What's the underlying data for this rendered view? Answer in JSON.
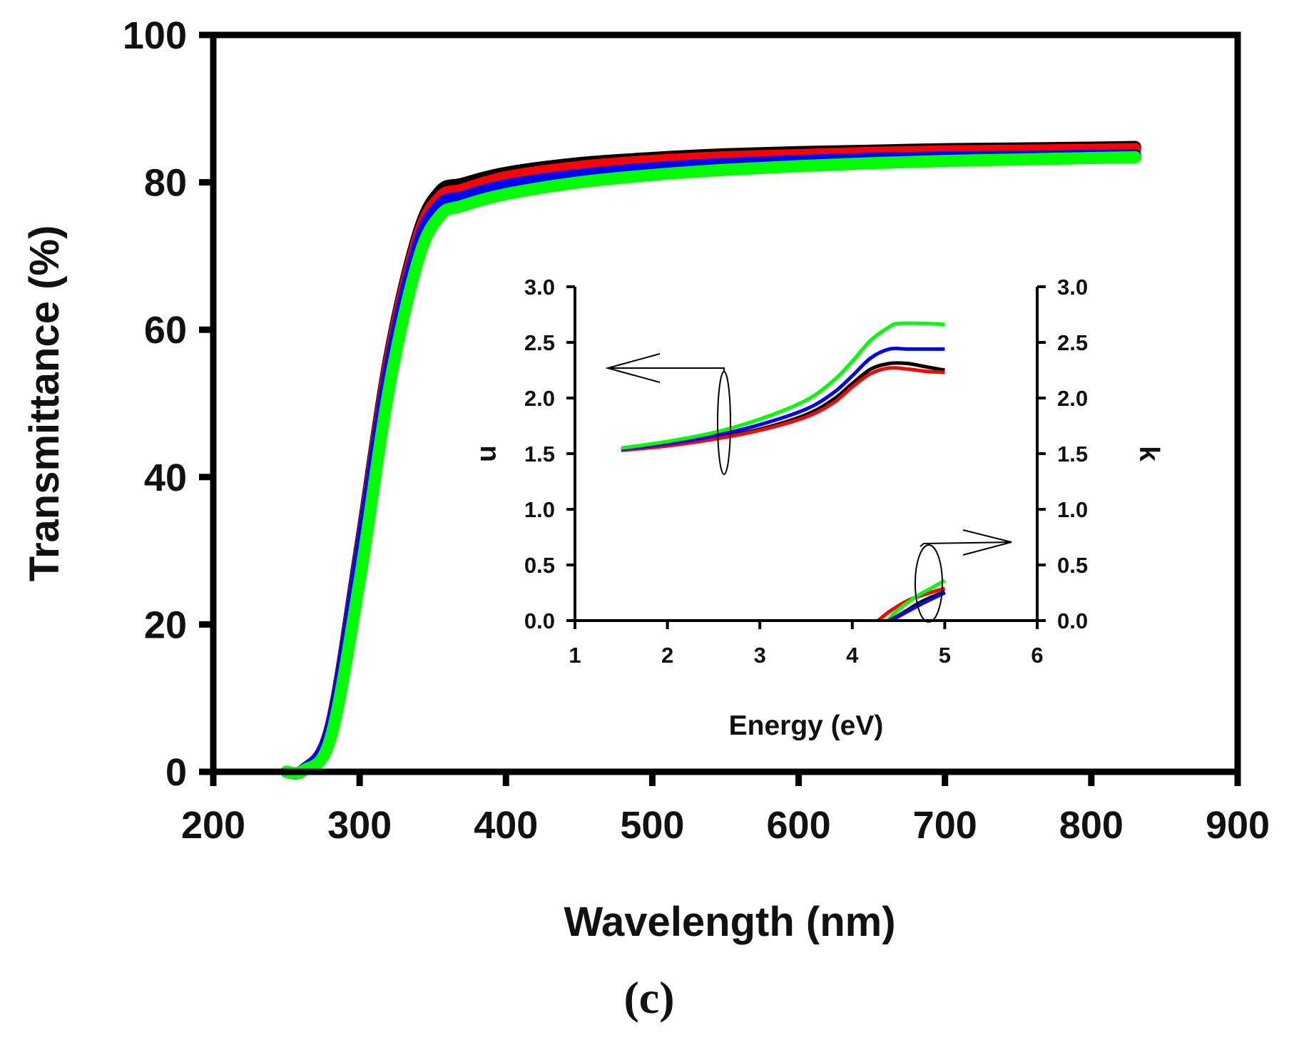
{
  "panel_label": "(c)",
  "colors": {
    "black": "#000000",
    "red": "#ff0000",
    "blue": "#0000ff",
    "green": "#00ff00"
  },
  "chart_data": [
    {
      "type": "line",
      "xlabel": "Wavelength (nm)",
      "ylabel": "Transmittance (%)",
      "xlim": [
        200,
        900
      ],
      "ylim": [
        0,
        100
      ],
      "xticks": [
        "200",
        "300",
        "400",
        "500",
        "600",
        "700",
        "800",
        "900"
      ],
      "yticks": [
        "0",
        "20",
        "40",
        "60",
        "80",
        "100"
      ],
      "grid": false,
      "series": [
        {
          "color": "#000000",
          "x": [
            250,
            262,
            280,
            300,
            320,
            340,
            355,
            370,
            400,
            450,
            500,
            550,
            600,
            650,
            700,
            750,
            800,
            830
          ],
          "y": [
            0,
            0.3,
            6,
            30,
            56,
            73,
            78.8,
            79.8,
            81.3,
            82.6,
            83.3,
            83.8,
            84.1,
            84.3,
            84.5,
            84.6,
            84.7,
            84.8
          ]
        },
        {
          "color": "#ff0000",
          "x": [
            250,
            262,
            280,
            300,
            320,
            340,
            355,
            370,
            400,
            450,
            500,
            550,
            600,
            650,
            700,
            750,
            800,
            830
          ],
          "y": [
            0,
            0.3,
            6,
            29.5,
            55.5,
            72.5,
            78,
            79,
            80.7,
            82.1,
            82.9,
            83.4,
            83.7,
            84,
            84.2,
            84.3,
            84.4,
            84.5
          ]
        },
        {
          "color": "#0000ff",
          "x": [
            250,
            262,
            280,
            300,
            320,
            340,
            355,
            370,
            400,
            450,
            500,
            550,
            600,
            650,
            700,
            750,
            800,
            830
          ],
          "y": [
            0,
            0.3,
            5.8,
            29,
            54.5,
            71.5,
            77,
            78,
            79.6,
            81,
            81.9,
            82.5,
            82.9,
            83.2,
            83.4,
            83.5,
            83.6,
            83.7
          ]
        },
        {
          "color": "#00ff00",
          "x": [
            250,
            262,
            280,
            300,
            320,
            340,
            355,
            370,
            400,
            450,
            500,
            550,
            600,
            650,
            700,
            750,
            800,
            830
          ],
          "y": [
            0,
            0.2,
            4.5,
            26,
            52,
            69.5,
            75.5,
            76.8,
            78.4,
            80,
            81,
            81.7,
            82.2,
            82.6,
            82.9,
            83.1,
            83.3,
            83.4
          ]
        }
      ]
    },
    {
      "type": "line",
      "inset": true,
      "xlabel": "Energy (eV)",
      "ylabel_left": "n",
      "ylabel_right": "k",
      "xlim": [
        1,
        6
      ],
      "ylim": [
        0,
        3
      ],
      "xticks": [
        "1",
        "2",
        "3",
        "4",
        "5",
        "6"
      ],
      "yticks": [
        "0.0",
        "0.5",
        "1.0",
        "1.5",
        "2.0",
        "2.5",
        "3.0"
      ],
      "grid": false,
      "series": [
        {
          "color": "#000000",
          "axis": "left",
          "x": [
            1.5,
            2,
            2.5,
            3,
            3.5,
            3.8,
            4,
            4.2,
            4.4,
            4.6,
            4.8,
            5
          ],
          "y": [
            1.54,
            1.58,
            1.64,
            1.72,
            1.85,
            1.99,
            2.13,
            2.26,
            2.31,
            2.31,
            2.28,
            2.25
          ]
        },
        {
          "color": "#ff0000",
          "axis": "left",
          "x": [
            1.5,
            2,
            2.5,
            3,
            3.5,
            3.8,
            4,
            4.2,
            4.4,
            4.6,
            4.8,
            5
          ],
          "y": [
            1.53,
            1.57,
            1.63,
            1.71,
            1.83,
            1.96,
            2.1,
            2.22,
            2.27,
            2.26,
            2.24,
            2.23
          ]
        },
        {
          "color": "#0000ff",
          "axis": "left",
          "x": [
            1.5,
            2,
            2.5,
            3,
            3.5,
            3.8,
            4,
            4.2,
            4.4,
            4.6,
            4.8,
            5
          ],
          "y": [
            1.54,
            1.59,
            1.66,
            1.76,
            1.9,
            2.05,
            2.2,
            2.36,
            2.44,
            2.44,
            2.44,
            2.44
          ]
        },
        {
          "color": "#00ff00",
          "axis": "left",
          "x": [
            1.5,
            2,
            2.5,
            3,
            3.5,
            3.8,
            4,
            4.2,
            4.4,
            4.5,
            4.8,
            5
          ],
          "y": [
            1.55,
            1.61,
            1.69,
            1.81,
            1.98,
            2.16,
            2.33,
            2.52,
            2.64,
            2.67,
            2.67,
            2.66
          ]
        },
        {
          "color": "#ff0000",
          "axis": "right",
          "x": [
            4.28,
            4.4,
            4.6,
            4.8,
            5
          ],
          "y": [
            0,
            0.08,
            0.18,
            0.24,
            0.29
          ]
        },
        {
          "color": "#00ff00",
          "axis": "right",
          "x": [
            4.38,
            4.5,
            4.7,
            4.85,
            5
          ],
          "y": [
            0,
            0.1,
            0.22,
            0.29,
            0.36
          ]
        },
        {
          "color": "#000000",
          "axis": "right",
          "x": [
            4.4,
            4.55,
            4.75,
            5
          ],
          "y": [
            0,
            0.07,
            0.17,
            0.26
          ]
        },
        {
          "color": "#0000ff",
          "axis": "right",
          "x": [
            4.42,
            4.55,
            4.75,
            5
          ],
          "y": [
            0,
            0.06,
            0.15,
            0.25
          ]
        }
      ]
    }
  ]
}
